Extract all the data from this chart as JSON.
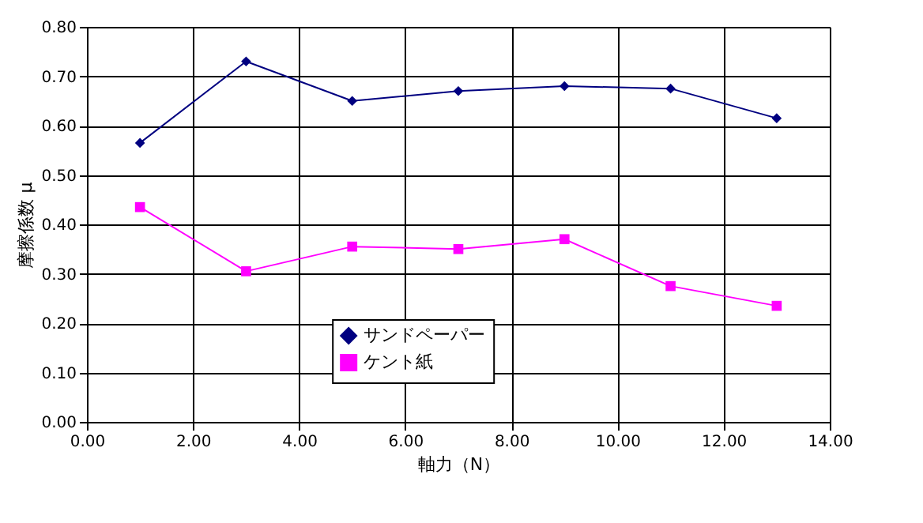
{
  "chart_data": {
    "type": "line",
    "xlabel": "軸力（N）",
    "ylabel": "摩擦係数 μ",
    "x": [
      1,
      3,
      5,
      7,
      9,
      11,
      13
    ],
    "series": [
      {
        "name": "サンドペーパー",
        "color": "#000080",
        "marker": "diamond",
        "values": [
          0.565,
          0.73,
          0.65,
          0.67,
          0.68,
          0.675,
          0.615
        ]
      },
      {
        "name": "ケント紙",
        "color": "#ff00ff",
        "marker": "square",
        "values": [
          0.435,
          0.305,
          0.355,
          0.35,
          0.37,
          0.275,
          0.235
        ]
      }
    ],
    "xlim": [
      0,
      14
    ],
    "xticks": [
      {
        "value": 0,
        "label": "0.00"
      },
      {
        "value": 2,
        "label": "2.00"
      },
      {
        "value": 4,
        "label": "4.00"
      },
      {
        "value": 6,
        "label": "6.00"
      },
      {
        "value": 8,
        "label": "8.00"
      },
      {
        "value": 10,
        "label": "10.00"
      },
      {
        "value": 12,
        "label": "12.00"
      },
      {
        "value": 14,
        "label": "14.00"
      }
    ],
    "ylim": [
      0,
      0.8
    ],
    "yticks": [
      {
        "value": 0,
        "label": "0.00"
      },
      {
        "value": 0.1,
        "label": "0.10"
      },
      {
        "value": 0.2,
        "label": "0.20"
      },
      {
        "value": 0.3,
        "label": "0.30"
      },
      {
        "value": 0.4,
        "label": "0.40"
      },
      {
        "value": 0.5,
        "label": "0.50"
      },
      {
        "value": 0.6,
        "label": "0.60"
      },
      {
        "value": 0.7,
        "label": "0.70"
      },
      {
        "value": 0.8,
        "label": "0.80"
      }
    ],
    "grid": true,
    "legend": "bottom",
    "line_style": "solid"
  }
}
